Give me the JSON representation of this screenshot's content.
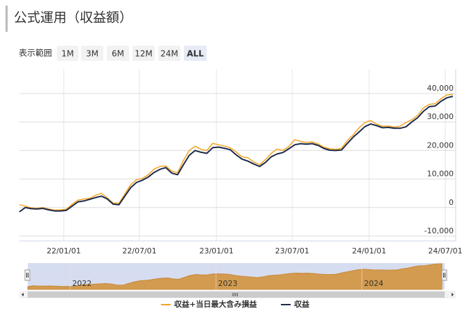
{
  "chart_data": {
    "type": "line",
    "title": "公式運用（収益額）",
    "x": [
      "2021-09-17",
      "2021-10-01",
      "2021-10-15",
      "2021-10-29",
      "2021-11-12",
      "2021-11-26",
      "2021-12-10",
      "2021-12-24",
      "2022-01-07",
      "2022-01-21",
      "2022-02-04",
      "2022-02-18",
      "2022-03-04",
      "2022-03-18",
      "2022-04-01",
      "2022-04-15",
      "2022-04-29",
      "2022-05-13",
      "2022-05-27",
      "2022-06-10",
      "2022-06-24",
      "2022-07-08",
      "2022-07-22",
      "2022-08-05",
      "2022-08-19",
      "2022-09-02",
      "2022-09-16",
      "2022-09-30",
      "2022-10-14",
      "2022-10-28",
      "2022-11-11",
      "2022-11-25",
      "2022-12-09",
      "2022-12-23",
      "2023-01-06",
      "2023-01-20",
      "2023-02-03",
      "2023-02-17",
      "2023-03-03",
      "2023-03-17",
      "2023-03-31",
      "2023-04-14",
      "2023-04-28",
      "2023-05-12",
      "2023-05-26",
      "2023-06-09",
      "2023-06-23",
      "2023-07-07",
      "2023-07-21",
      "2023-08-04",
      "2023-08-18",
      "2023-09-01",
      "2023-09-15",
      "2023-09-29",
      "2023-10-13",
      "2023-10-27",
      "2023-11-10",
      "2023-11-24",
      "2023-12-08",
      "2023-12-22",
      "2024-01-05",
      "2024-01-19",
      "2024-02-02",
      "2024-02-16",
      "2024-03-01",
      "2024-03-15",
      "2024-03-29",
      "2024-04-12",
      "2024-04-26",
      "2024-05-10",
      "2024-05-24",
      "2024-06-07",
      "2024-06-21",
      "2024-07-05",
      "2024-07-19"
    ],
    "series": [
      {
        "name": "収益+当日最大含み損益",
        "color": "#f5a21f",
        "values": [
          1000,
          500,
          -100,
          -300,
          0,
          -500,
          -900,
          -800,
          -600,
          1200,
          2600,
          3000,
          3200,
          4300,
          5000,
          3400,
          1600,
          1500,
          4800,
          8000,
          9800,
          10200,
          11500,
          13500,
          14400,
          14600,
          12800,
          12200,
          16500,
          20000,
          21500,
          20400,
          20000,
          22500,
          22000,
          21600,
          21000,
          19500,
          17800,
          17500,
          16000,
          15000,
          16800,
          19000,
          20500,
          20000,
          21400,
          23800,
          23200,
          22800,
          23000,
          22300,
          21200,
          20600,
          20400,
          20800,
          23500,
          25500,
          28000,
          29800,
          30500,
          29200,
          28500,
          28600,
          28200,
          28500,
          29800,
          30800,
          32300,
          35000,
          36200,
          36400,
          38200,
          39500,
          39700
        ]
      },
      {
        "name": "収益",
        "color": "#1c2a4a",
        "values": [
          -1500,
          0,
          -400,
          -500,
          -300,
          -800,
          -1200,
          -1200,
          -1000,
          500,
          2000,
          2300,
          2900,
          3500,
          4000,
          3000,
          1200,
          1000,
          4000,
          7000,
          8800,
          9600,
          10700,
          12300,
          13400,
          14000,
          12100,
          11500,
          15000,
          18300,
          20000,
          19400,
          19000,
          21000,
          21200,
          20800,
          20300,
          18500,
          17000,
          16300,
          15300,
          14400,
          15800,
          17800,
          18800,
          19300,
          20600,
          22000,
          22400,
          22200,
          22400,
          21800,
          20700,
          20100,
          20000,
          20200,
          22500,
          24700,
          26500,
          28400,
          29300,
          28700,
          28000,
          28100,
          27800,
          27800,
          28300,
          30000,
          31500,
          33800,
          35400,
          35600,
          37300,
          38500,
          39000
        ]
      }
    ],
    "xlim": [
      "2021-09-17",
      "2024-07-26"
    ],
    "xticks": [
      {
        "value": "2022-01-01",
        "label": "22/01/01"
      },
      {
        "value": "2022-07-01",
        "label": "22/07/01"
      },
      {
        "value": "2023-01-01",
        "label": "23/01/01"
      },
      {
        "value": "2023-07-01",
        "label": "23/07/01"
      },
      {
        "value": "2024-01-01",
        "label": "24/01/01"
      },
      {
        "value": "2024-07-01",
        "label": "24/07/01"
      }
    ],
    "ylim": [
      -11700,
      48500
    ],
    "yticks": [
      {
        "value": -10000,
        "label": "-10,000"
      },
      0,
      {
        "value": 10000,
        "label": "10,000"
      },
      {
        "value": 20000,
        "label": "20,000"
      },
      {
        "value": 30000,
        "label": "30,000"
      },
      {
        "value": 40000,
        "label": "40,000"
      }
    ],
    "grid": true
  },
  "range_selector": {
    "label": "表示範囲",
    "buttons": [
      "1M",
      "3M",
      "6M",
      "12M",
      "24M",
      "ALL"
    ],
    "selected": 5
  },
  "navigator": {
    "xticks": [
      {
        "value": "2022-01-01",
        "label": "2022"
      },
      {
        "value": "2023-01-01",
        "label": "2023"
      },
      {
        "value": "2024-01-01",
        "label": "2024"
      }
    ]
  }
}
